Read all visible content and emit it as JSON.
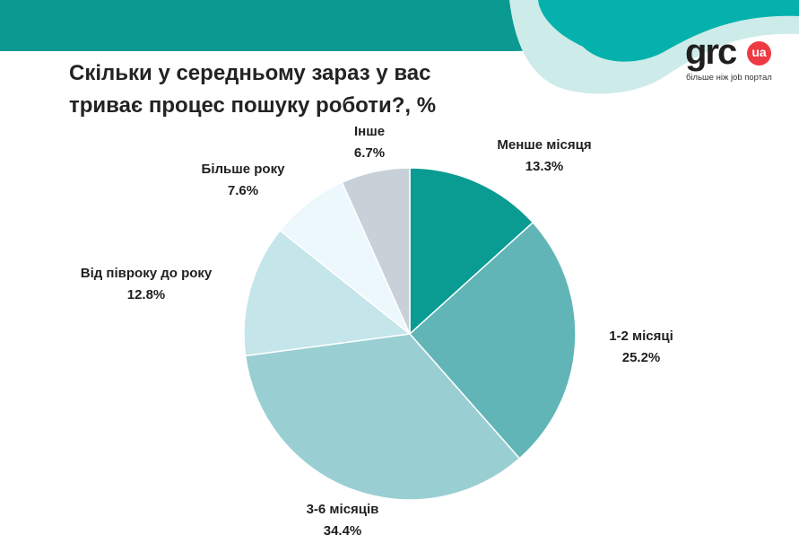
{
  "brand": {
    "logo_word": "grc",
    "logo_badge": "ua",
    "tagline": "більше ніж job портал",
    "colors": {
      "band": "#0a9a91",
      "wave_light": "#cdebe9",
      "badge": "#ee3a43"
    }
  },
  "chart_data": {
    "type": "pie",
    "title_lines": [
      "Скільки у середньому зараз у вас",
      "триває процес пошуку роботи?, %"
    ],
    "unit": "%",
    "start": "12 o'clock, clockwise",
    "slices": [
      {
        "label": "Менше місяця",
        "value": 13.3,
        "display": "13.3%",
        "color": "#0a9b92"
      },
      {
        "label": "1-2 місяці",
        "value": 25.2,
        "display": "25.2%",
        "color": "#61b5b7"
      },
      {
        "label": "3-6 місяців",
        "value": 34.4,
        "display": "34.4%",
        "color": "#99cfd3"
      },
      {
        "label": "Від півроку до року",
        "value": 12.8,
        "display": "12.8%",
        "color": "#c4e5ea"
      },
      {
        "label": "Більше року",
        "value": 7.6,
        "display": "7.6%",
        "color": "#ecf8fb"
      },
      {
        "label": "Інше",
        "value": 6.7,
        "display": "6.7%",
        "color": "#c8d0d8"
      }
    ]
  }
}
